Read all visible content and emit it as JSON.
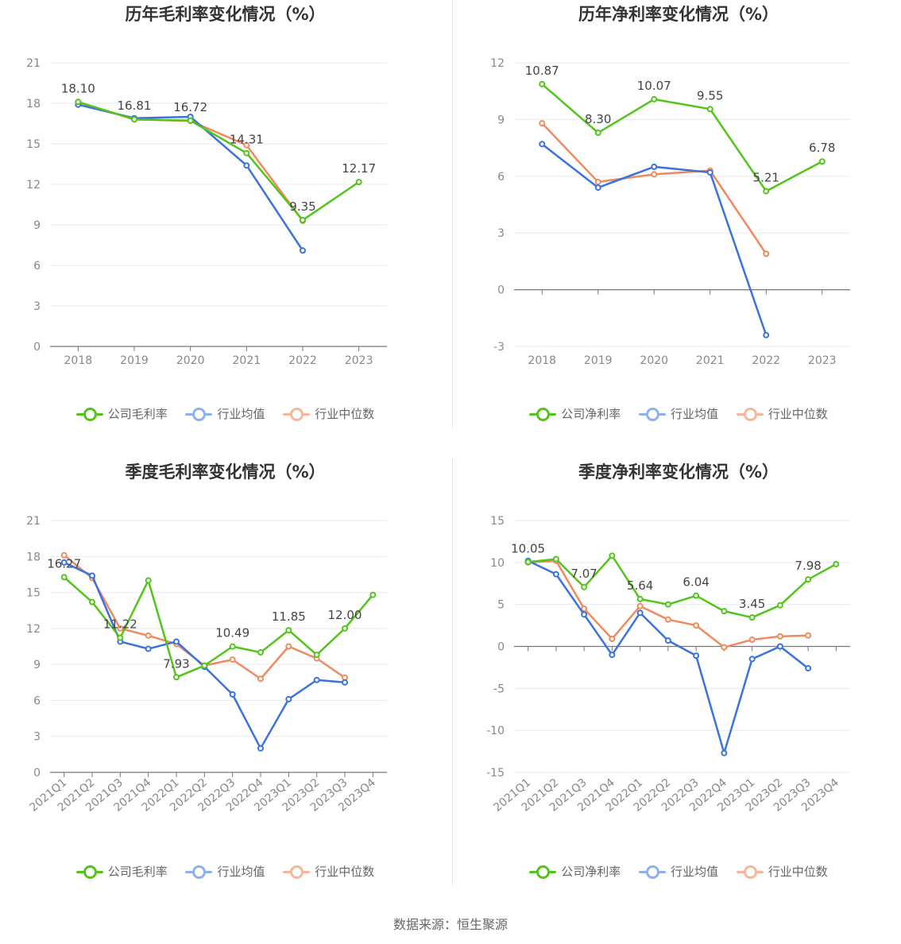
{
  "source": "数据来源：恒生聚源",
  "legends": {
    "gross": [
      "公司毛利率",
      "行业均值",
      "行业中位数"
    ],
    "net": [
      "公司净利率",
      "行业均值",
      "行业中位数"
    ]
  },
  "colors": {
    "company": "#52c41a",
    "avg": "#3a72e0",
    "median": "#f08a5d",
    "grid": "#e8e8f2",
    "axis": "#888888"
  },
  "chart_data": [
    {
      "id": "annual_gross",
      "type": "line",
      "title": "历年毛利率变化情况（%）",
      "categories": [
        "2018",
        "2019",
        "2020",
        "2021",
        "2022",
        "2023"
      ],
      "ylim": [
        0,
        21
      ],
      "yticks": [
        0,
        3,
        6,
        9,
        12,
        15,
        18,
        21
      ],
      "series": [
        {
          "name": "公司毛利率",
          "values": [
            18.1,
            16.81,
            16.72,
            14.31,
            9.35,
            12.17
          ]
        },
        {
          "name": "行业均值",
          "values": [
            17.9,
            16.9,
            17.0,
            13.4,
            7.1,
            null
          ]
        },
        {
          "name": "行业中位数",
          "values": [
            18.1,
            16.8,
            16.7,
            14.9,
            9.3,
            null
          ]
        }
      ],
      "labels": [
        "18.10",
        "16.81",
        "16.72",
        "14.31",
        "9.35",
        "12.17"
      ],
      "label_idx": [
        0,
        1,
        2,
        3,
        4,
        5
      ],
      "x_rotated": false
    },
    {
      "id": "annual_net",
      "type": "line",
      "title": "历年净利率变化情况（%）",
      "categories": [
        "2018",
        "2019",
        "2020",
        "2021",
        "2022",
        "2023"
      ],
      "ylim": [
        -3,
        12
      ],
      "yticks": [
        -3,
        0,
        3,
        6,
        9,
        12
      ],
      "series": [
        {
          "name": "公司净利率",
          "values": [
            10.87,
            8.3,
            10.07,
            9.55,
            5.21,
            6.78
          ]
        },
        {
          "name": "行业均值",
          "values": [
            7.7,
            5.4,
            6.5,
            6.2,
            -2.4,
            null
          ]
        },
        {
          "name": "行业中位数",
          "values": [
            8.8,
            5.7,
            6.1,
            6.3,
            1.9,
            null
          ]
        }
      ],
      "labels": [
        "10.87",
        "8.30",
        "10.07",
        "9.55",
        "5.21",
        "6.78"
      ],
      "label_idx": [
        0,
        1,
        2,
        3,
        4,
        5
      ],
      "x_rotated": false
    },
    {
      "id": "quarter_gross",
      "type": "line",
      "title": "季度毛利率变化情况（%）",
      "categories": [
        "2021Q1",
        "2021Q2",
        "2021Q3",
        "2021Q4",
        "2022Q1",
        "2022Q2",
        "2022Q3",
        "2022Q4",
        "2023Q1",
        "2023Q2",
        "2023Q3",
        "2023Q4"
      ],
      "ylim": [
        0,
        21
      ],
      "yticks": [
        0,
        3,
        6,
        9,
        12,
        15,
        18,
        21
      ],
      "series": [
        {
          "name": "公司毛利率",
          "values": [
            16.27,
            14.2,
            11.22,
            16.0,
            7.93,
            8.9,
            10.49,
            10.0,
            11.85,
            9.8,
            12.0,
            14.8
          ]
        },
        {
          "name": "行业均值",
          "values": [
            17.5,
            16.4,
            10.9,
            10.3,
            10.9,
            8.8,
            6.5,
            2.0,
            6.1,
            7.7,
            7.5,
            null
          ]
        },
        {
          "name": "行业中位数",
          "values": [
            18.1,
            16.2,
            12.0,
            11.4,
            10.7,
            8.9,
            9.4,
            7.8,
            10.5,
            9.5,
            7.9,
            null
          ]
        }
      ],
      "labels": [
        "16.27",
        "11.22",
        "7.93",
        "10.49",
        "11.85",
        "12.00"
      ],
      "label_idx": [
        0,
        2,
        4,
        6,
        8,
        10
      ],
      "x_rotated": true
    },
    {
      "id": "quarter_net",
      "type": "line",
      "title": "季度净利率变化情况（%）",
      "categories": [
        "2021Q1",
        "2021Q2",
        "2021Q3",
        "2021Q4",
        "2022Q1",
        "2022Q2",
        "2022Q3",
        "2022Q4",
        "2023Q1",
        "2023Q2",
        "2023Q3",
        "2023Q4"
      ],
      "ylim": [
        -15,
        15
      ],
      "yticks": [
        -15,
        -10,
        -5,
        0,
        5,
        10,
        15
      ],
      "series": [
        {
          "name": "公司净利率",
          "values": [
            10.05,
            10.4,
            7.07,
            10.8,
            5.64,
            5.0,
            6.04,
            4.2,
            3.45,
            4.9,
            7.98,
            9.8
          ]
        },
        {
          "name": "行业均值",
          "values": [
            10.2,
            8.6,
            3.8,
            -1.0,
            4.0,
            0.7,
            -1.1,
            -12.7,
            -1.5,
            0.0,
            -2.6,
            null
          ]
        },
        {
          "name": "行业中位数",
          "values": [
            10.0,
            10.2,
            4.5,
            0.9,
            4.8,
            3.2,
            2.5,
            -0.1,
            0.8,
            1.2,
            1.3,
            null
          ]
        }
      ],
      "labels": [
        "10.05",
        "7.07",
        "5.64",
        "6.04",
        "3.45",
        "7.98"
      ],
      "label_idx": [
        0,
        2,
        4,
        6,
        8,
        10
      ],
      "x_rotated": true
    }
  ]
}
